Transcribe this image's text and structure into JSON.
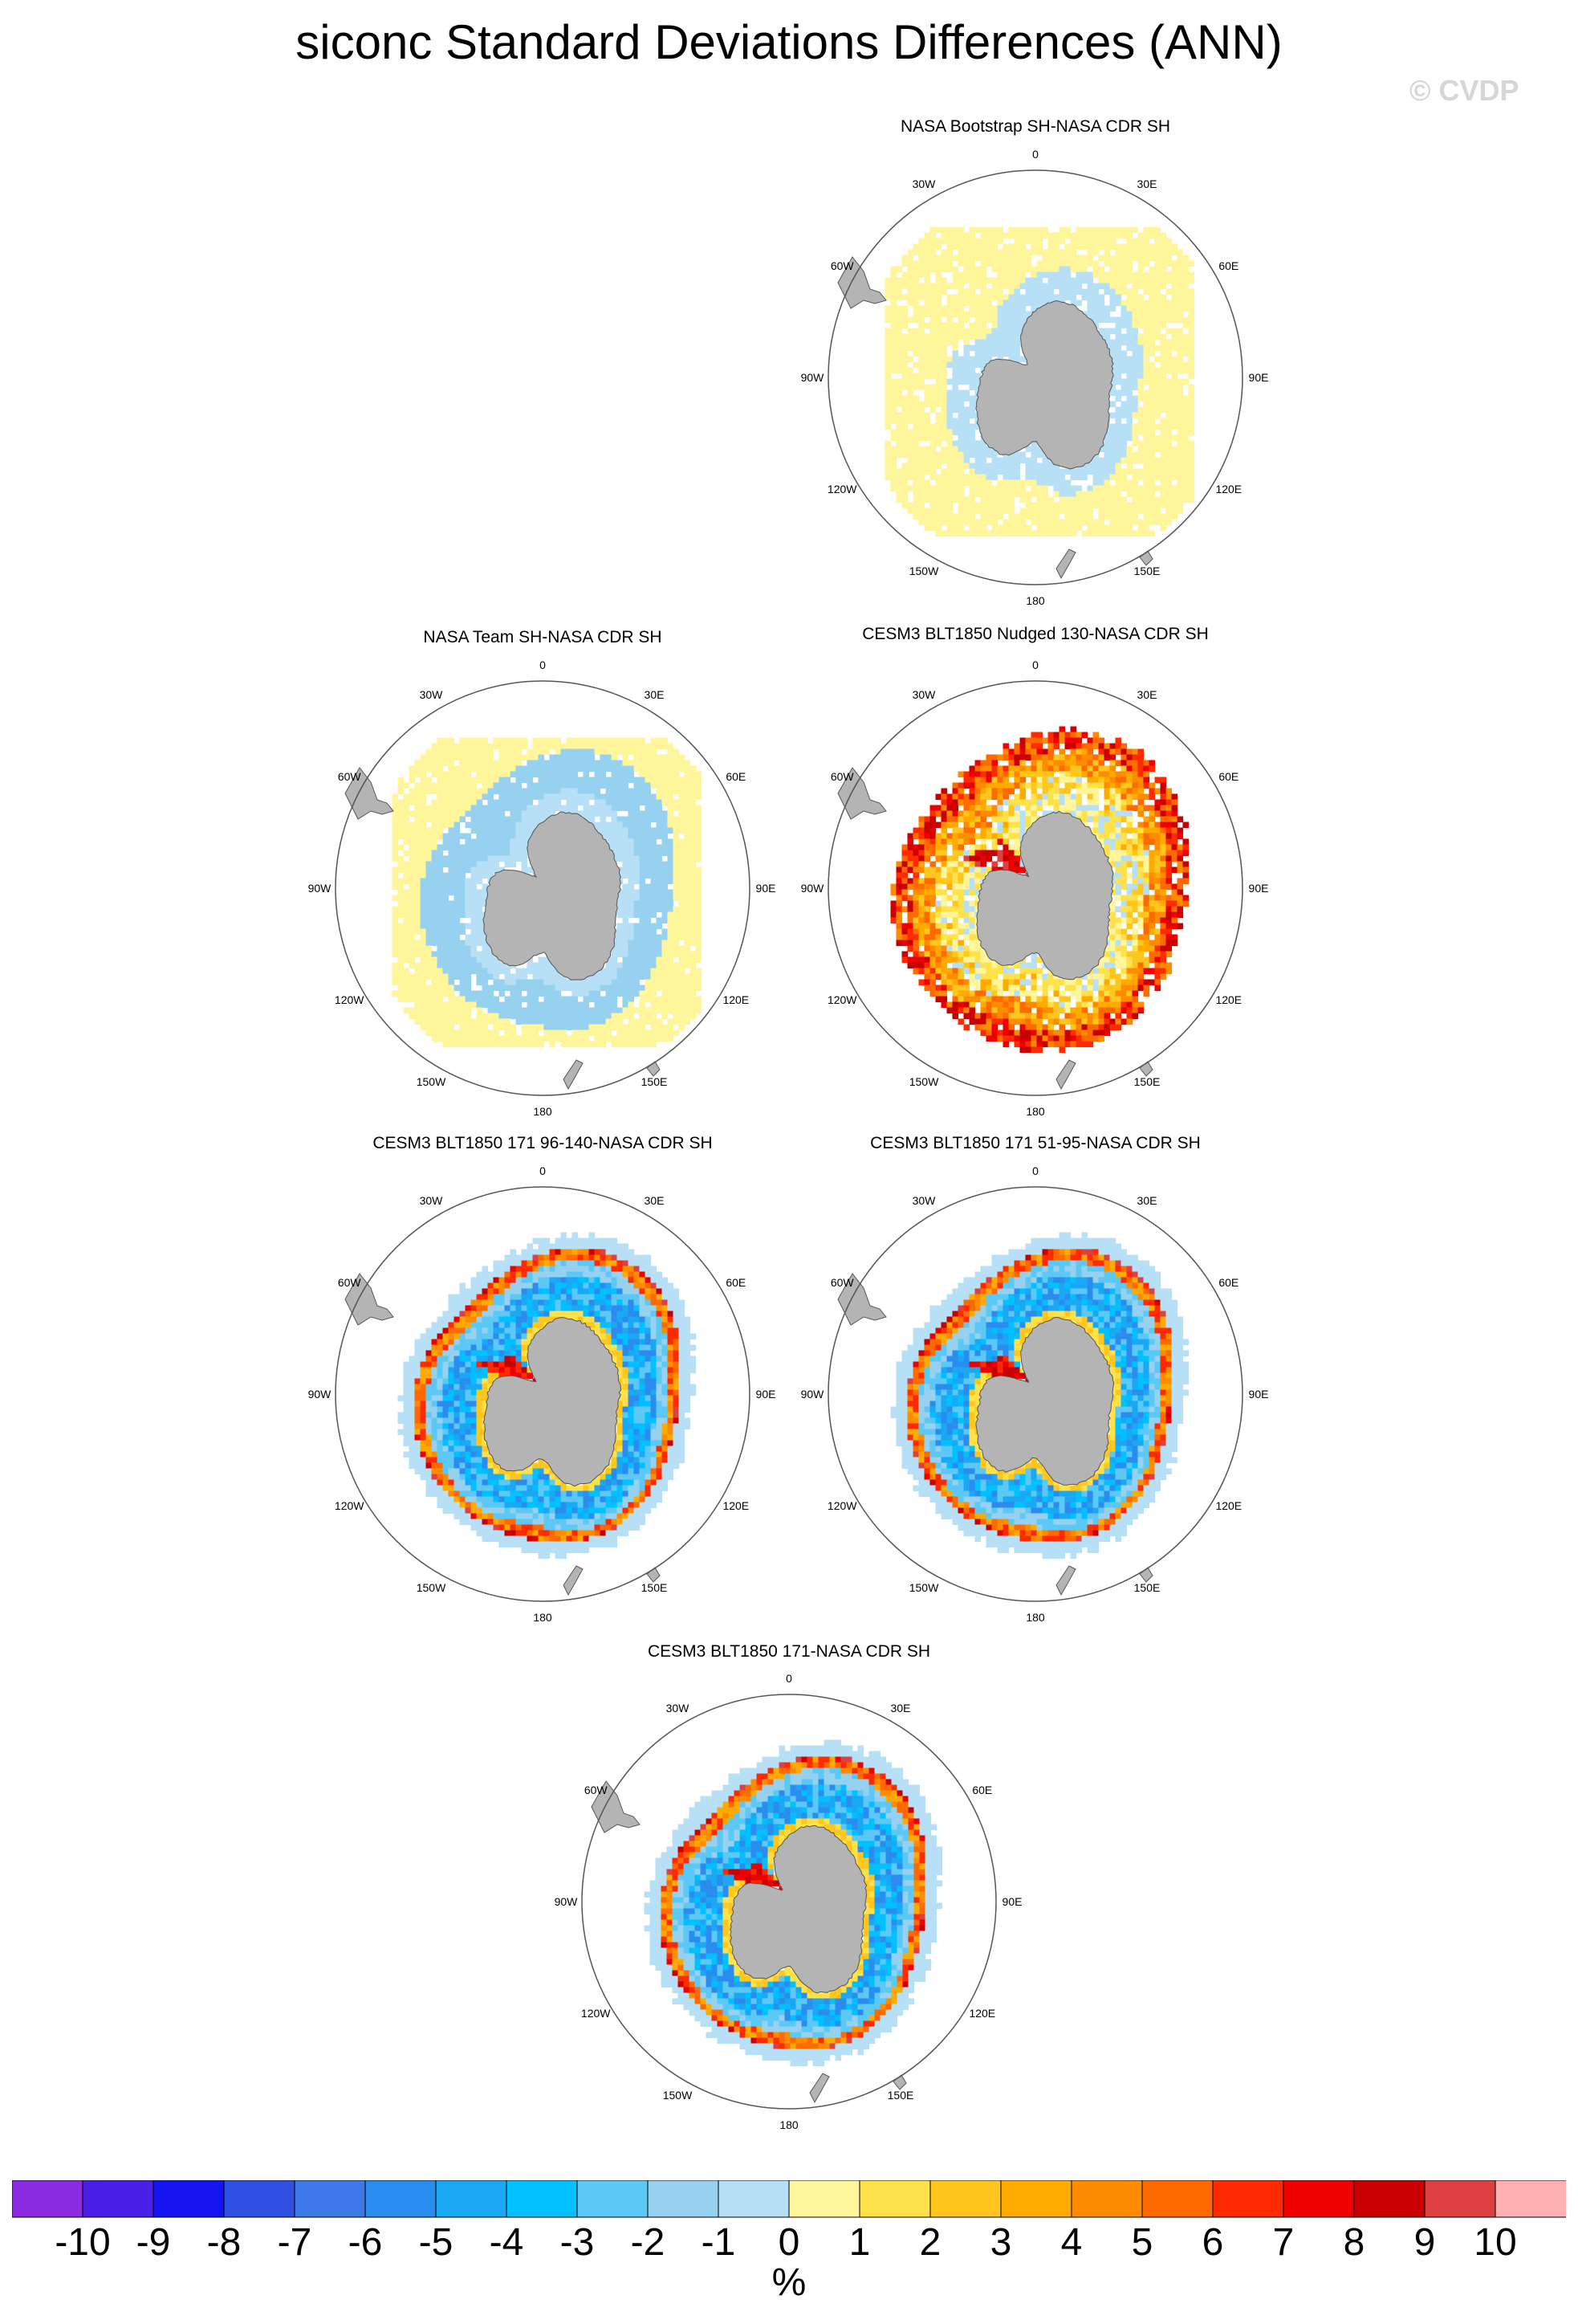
{
  "title": "siconc Standard Deviations Differences (ANN)",
  "watermark": "© CVDP",
  "panels": [
    {
      "title": "NASA Bootstrap SH-NASA CDR SH",
      "pattern": "bootstrap"
    },
    {
      "title": "NASA Team SH-NASA CDR SH",
      "pattern": "team"
    },
    {
      "title": "CESM3 BLT1850 Nudged 130-NASA CDR SH",
      "pattern": "nudged"
    },
    {
      "title": "CESM3 BLT1850 171 96-140-NASA CDR SH",
      "pattern": "model"
    },
    {
      "title": "CESM3 BLT1850 171 51-95-NASA CDR SH",
      "pattern": "model"
    },
    {
      "title": "CESM3 BLT1850 171-NASA CDR SH",
      "pattern": "model"
    }
  ],
  "map_labels": {
    "lon_0": "0",
    "lon_30e": "30E",
    "lon_60e": "60E",
    "lon_90e": "90E",
    "lon_120e": "120E",
    "lon_150e": "150E",
    "lon_180": "180",
    "lon_150w": "150W",
    "lon_120w": "120W",
    "lon_90w": "90W",
    "lon_60w": "60W",
    "lon_30w": "30W"
  },
  "colorbar": {
    "colors": [
      "#8a2be2",
      "#4a1fe8",
      "#1414f0",
      "#2f50e0",
      "#3c78e8",
      "#2b8cf0",
      "#1aa8f5",
      "#00c0ff",
      "#5bc8f5",
      "#96d2f0",
      "#b7e0f7",
      "#fff59a",
      "#ffe24a",
      "#ffc71e",
      "#ffaa00",
      "#ff8c00",
      "#ff6a00",
      "#ff2a00",
      "#ee0000",
      "#c80000",
      "#dc4040",
      "#ffb0b0"
    ],
    "labels": [
      "-10",
      "-9",
      "-8",
      "-7",
      "-6",
      "-5",
      "-4",
      "-3",
      "-2",
      "-1",
      "0",
      "1",
      "2",
      "3",
      "4",
      "5",
      "6",
      "7",
      "8",
      "9",
      "10"
    ],
    "units": "%"
  }
}
